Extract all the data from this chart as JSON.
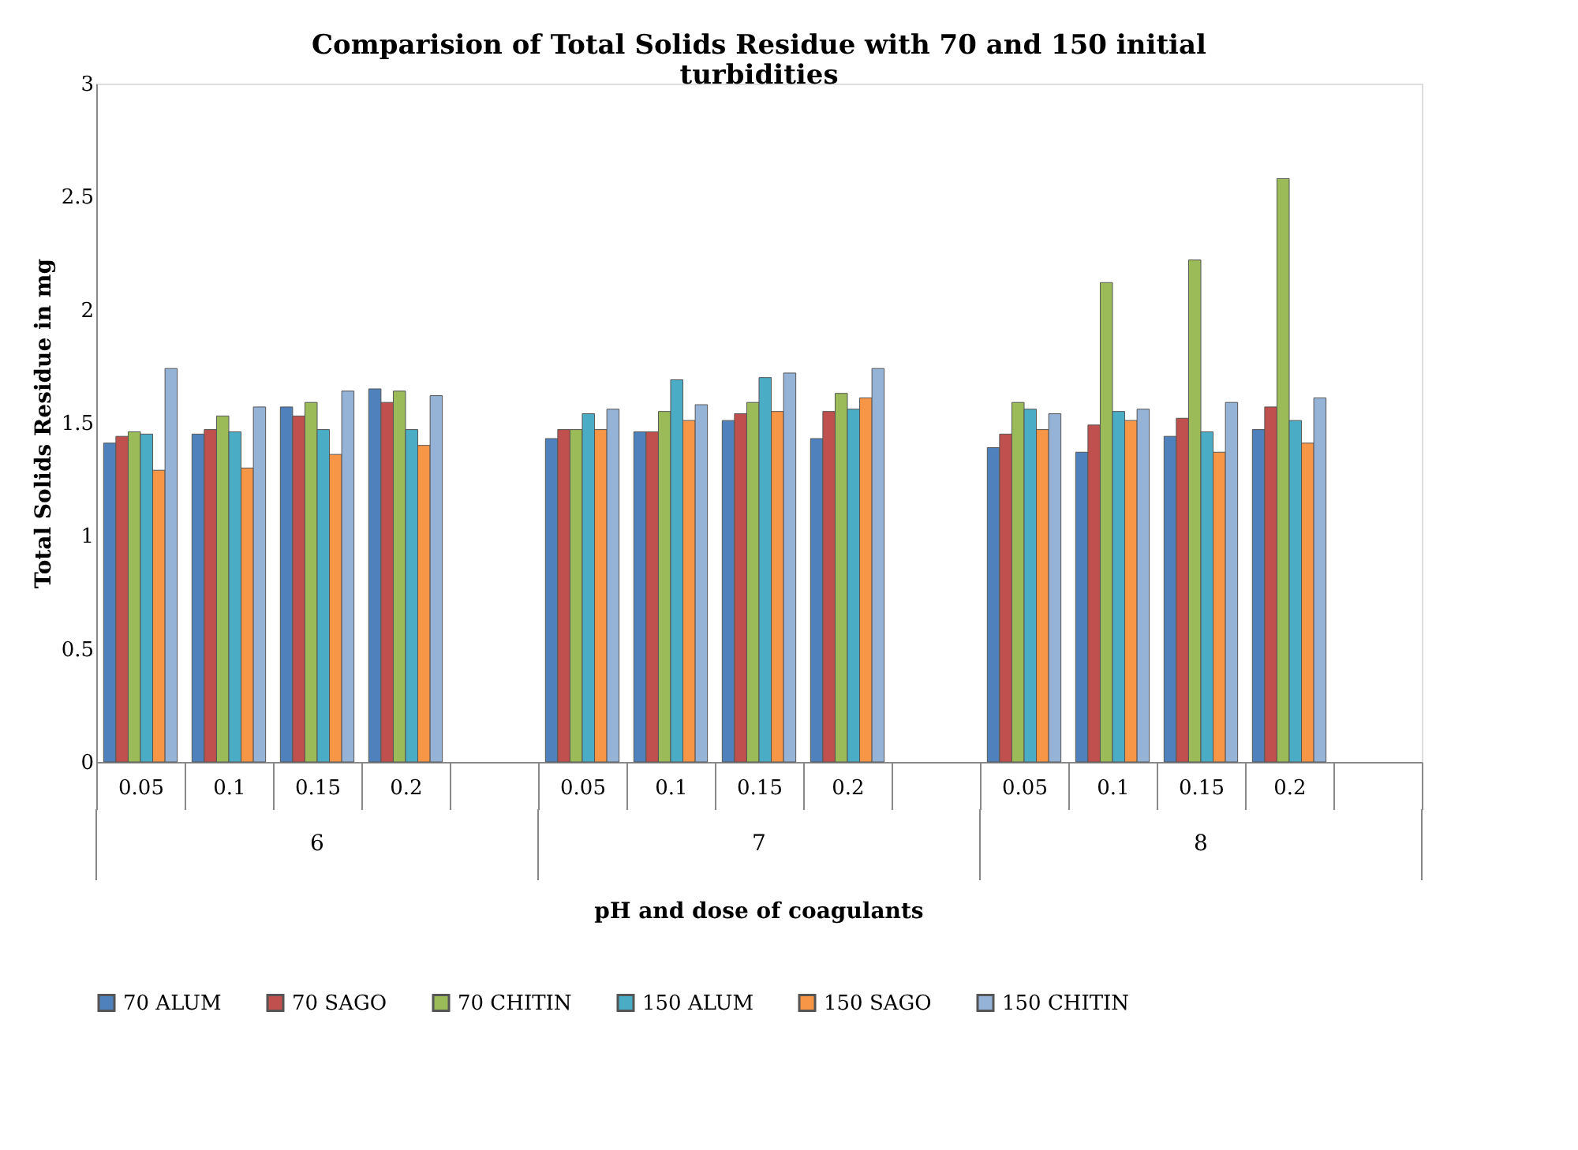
{
  "chart_data": {
    "type": "bar",
    "title": "Comparision of Total Solids Residue with 70 and 150 initial turbidities",
    "xlabel": "pH and dose of coagulants",
    "ylabel": "Total Solids Residue in mg",
    "categories": [
      "0.05",
      "0.1",
      "0.15",
      "0.2",
      null,
      "0.05",
      "0.1",
      "0.15",
      "0.2",
      null,
      "0.05",
      "0.1",
      "0.15",
      "0.2",
      null
    ],
    "annotations": [
      "6",
      "7",
      "8"
    ],
    "series": [
      {
        "name": "70 ALUM",
        "color": "#4f81bd",
        "values": [
          1.41,
          1.45,
          1.57,
          1.65,
          null,
          1.43,
          1.46,
          1.51,
          1.43,
          null,
          1.39,
          1.37,
          1.44,
          1.47,
          null
        ]
      },
      {
        "name": "70 SAGO",
        "color": "#c0504d",
        "values": [
          1.44,
          1.47,
          1.53,
          1.59,
          null,
          1.47,
          1.46,
          1.54,
          1.55,
          null,
          1.45,
          1.49,
          1.52,
          1.57,
          null
        ]
      },
      {
        "name": "70 CHITIN",
        "color": "#9bbb59",
        "values": [
          1.46,
          1.53,
          1.59,
          1.64,
          null,
          1.47,
          1.55,
          1.59,
          1.63,
          null,
          1.59,
          2.12,
          2.22,
          2.58,
          null
        ]
      },
      {
        "name": "150 ALUM",
        "color": "#4bacc6",
        "values": [
          1.45,
          1.46,
          1.47,
          1.47,
          null,
          1.54,
          1.69,
          1.7,
          1.56,
          null,
          1.56,
          1.55,
          1.46,
          1.51,
          null
        ]
      },
      {
        "name": "150 SAGO",
        "color": "#f79646",
        "values": [
          1.29,
          1.3,
          1.36,
          1.4,
          null,
          1.47,
          1.51,
          1.55,
          1.61,
          null,
          1.47,
          1.51,
          1.37,
          1.41,
          null
        ]
      },
      {
        "name": "150 CHITIN",
        "color": "#95b3d7",
        "values": [
          1.74,
          1.57,
          1.64,
          1.62,
          null,
          1.56,
          1.58,
          1.72,
          1.74,
          null,
          1.54,
          1.56,
          1.59,
          1.61,
          null
        ]
      }
    ],
    "ylim": [
      0,
      3
    ],
    "yticks": [
      0,
      0.5,
      1,
      1.5,
      2,
      2.5,
      3
    ],
    "grid": false,
    "legend": "bottom"
  }
}
